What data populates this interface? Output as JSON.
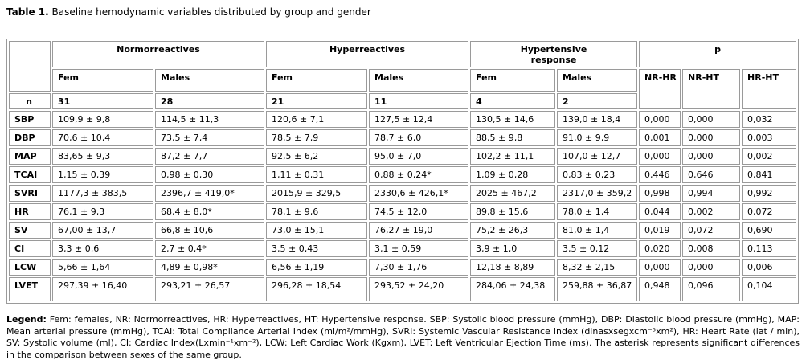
{
  "title": {
    "label": "Table 1.",
    "text": " Baseline hemodynamic variables distributed by group and gender"
  },
  "table": {
    "group_headers": [
      "Normorreactives",
      "Hyperreactives",
      "Hypertensive response",
      "p"
    ],
    "sub_headers": [
      "Fem",
      "Males",
      "Fem",
      "Males",
      "Fem",
      "Males"
    ],
    "p_headers": [
      "NR-HR",
      "NR-HT",
      "HR-HT"
    ],
    "n_row": {
      "label": "n",
      "values": [
        "31",
        "28",
        "21",
        "11",
        "4",
        "2"
      ]
    },
    "rows": [
      {
        "label": "SBP",
        "values": [
          "109,9 ± 9,8",
          "114,5 ± 11,3",
          "120,6 ± 7,1",
          "127,5 ± 12,4",
          "130,5 ± 14,6",
          "139,0 ± 18,4",
          "0,000",
          "0,000",
          "0,032"
        ]
      },
      {
        "label": "DBP",
        "values": [
          "70,6 ± 10,4",
          "73,5 ± 7,4",
          "78,5 ± 7,9",
          "78,7 ± 6,0",
          "88,5 ± 9,8",
          "91,0 ± 9,9",
          "0,001",
          "0,000",
          "0,003"
        ]
      },
      {
        "label": "MAP",
        "values": [
          "83,65 ± 9,3",
          "87,2 ± 7,7",
          "92,5 ± 6,2",
          "95,0 ± 7,0",
          "102,2 ± 11,1",
          "107,0 ± 12,7",
          "0,000",
          "0,000",
          "0,002"
        ]
      },
      {
        "label": "TCAI",
        "values": [
          "1,15 ± 0,39",
          "0,98 ± 0,30",
          "1,11 ± 0,31",
          "0,88 ± 0,24*",
          "1,09 ± 0,28",
          "0,83 ± 0,23",
          "0,446",
          "0,646",
          "0,841"
        ]
      },
      {
        "label": "SVRI",
        "values": [
          "1177,3 ± 383,5",
          "2396,7 ± 419,0*",
          "2015,9 ± 329,5",
          "2330,6 ± 426,1*",
          "2025 ± 467,2",
          "2317,0 ± 359,2",
          "0,998",
          "0,994",
          "0,992"
        ]
      },
      {
        "label": "HR",
        "values": [
          "76,1 ± 9,3",
          "68,4 ± 8,0*",
          "78,1 ± 9,6",
          "74,5 ± 12,0",
          "89,8 ± 15,6",
          "78,0 ± 1,4",
          "0,044",
          "0,002",
          "0,072"
        ]
      },
      {
        "label": "SV",
        "values": [
          "67,00 ± 13,7",
          "66,8 ± 10,6",
          "73,0 ± 15,1",
          "76,27 ± 19,0",
          "75,2 ± 26,3",
          "81,0 ± 1,4",
          "0,019",
          "0,072",
          "0,690"
        ]
      },
      {
        "label": "CI",
        "values": [
          "3,3 ± 0,6",
          "2,7 ± 0,4*",
          "3,5 ± 0,43",
          "3,1 ± 0,59",
          "3,9 ± 1,0",
          "3,5 ± 0,12",
          "0,020",
          "0,008",
          "0,113"
        ]
      },
      {
        "label": "LCW",
        "values": [
          "5,66 ± 1,64",
          "4,89 ± 0,98*",
          "6,56 ± 1,19",
          "7,30 ± 1,76",
          "12,18 ± 8,89",
          "8,32 ± 2,15",
          "0,000",
          "0,000",
          "0,006"
        ]
      },
      {
        "label": "LVET",
        "values": [
          "297,39 ± 16,40",
          "293,21 ± 26,57",
          "296,28 ± 18,54",
          "293,52 ± 24,20",
          "284,06 ± 24,38",
          "259,88 ± 36,87",
          "0,948",
          "0,096",
          "0,104"
        ]
      }
    ]
  },
  "legend": {
    "label": "Legend:",
    "text": " Fem: females, NR: Normorreactives, HR: Hyperreactives, HT: Hypertensive response. SBP: Systolic blood pressure (mmHg), DBP: Diastolic blood pressure (mmHg), MAP: Mean arterial pressure (mmHg), TCAI: Total Compliance Arterial Index (ml/m²/mmHg), SVRI: Systemic Vascular Resistance Index (dinasxsegxcm⁻⁵xm²), HR: Heart Rate (lat / min), SV: Systolic volume (ml), CI: Cardiac Index(Lxmin⁻¹xm⁻²), LCW: Left Cardiac Work (Kgxm), LVET: Left Ventricular Ejection Time (ms). The asterisk represents significant differences in the comparison between sexes of the same group."
  },
  "colors": {
    "border": "#9a9a9a",
    "text": "#000000",
    "background": "#ffffff"
  }
}
